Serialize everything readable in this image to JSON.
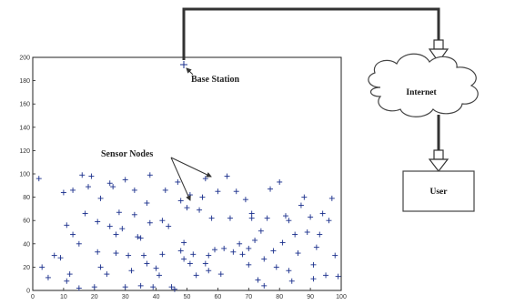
{
  "labels": {
    "base_station": "Base Station",
    "sensor_nodes": "Sensor Nodes",
    "internet": "Internet",
    "user": "User"
  },
  "colors": {
    "marker": "#1a2f8c",
    "line": "#333333",
    "axis": "#222222"
  },
  "icons": {
    "cloud": "cloud-icon",
    "arrow": "arrow-down-icon"
  },
  "chart_data": {
    "type": "scatter",
    "marker": "plus",
    "xlim": [
      0,
      100
    ],
    "ylim": [
      0,
      200
    ],
    "xticks": [
      0,
      10,
      20,
      30,
      40,
      50,
      60,
      70,
      80,
      90,
      100
    ],
    "yticks": [
      0,
      20,
      40,
      60,
      80,
      100,
      120,
      140,
      160,
      180,
      200
    ],
    "title": "",
    "xlabel": "",
    "ylabel": "",
    "base_station": {
      "x": 50,
      "y": 190
    },
    "series": [
      {
        "points": [
          [
            2,
            96
          ],
          [
            3,
            20
          ],
          [
            5,
            11
          ],
          [
            7,
            30
          ],
          [
            9,
            28
          ],
          [
            10,
            84
          ],
          [
            11,
            8
          ],
          [
            11,
            56
          ],
          [
            12,
            14
          ],
          [
            13,
            86
          ],
          [
            13,
            48
          ],
          [
            15,
            2
          ],
          [
            15,
            40
          ],
          [
            16,
            99
          ],
          [
            17,
            66
          ],
          [
            18,
            89
          ],
          [
            19,
            98
          ],
          [
            20,
            3
          ],
          [
            21,
            33
          ],
          [
            21,
            59
          ],
          [
            22,
            79
          ],
          [
            22,
            20
          ],
          [
            24,
            14
          ],
          [
            25,
            55
          ],
          [
            25,
            92
          ],
          [
            26,
            89
          ],
          [
            27,
            48
          ],
          [
            27,
            32
          ],
          [
            28,
            67
          ],
          [
            29,
            53
          ],
          [
            30,
            3
          ],
          [
            30,
            95
          ],
          [
            31,
            30
          ],
          [
            32,
            17
          ],
          [
            33,
            86
          ],
          [
            33,
            65
          ],
          [
            34,
            46
          ],
          [
            35,
            4
          ],
          [
            35,
            45
          ],
          [
            36,
            30
          ],
          [
            37,
            23
          ],
          [
            37,
            75
          ],
          [
            38,
            58
          ],
          [
            38,
            99
          ],
          [
            39,
            3
          ],
          [
            40,
            19
          ],
          [
            41,
            13
          ],
          [
            42,
            31
          ],
          [
            42,
            60
          ],
          [
            43,
            86
          ],
          [
            44,
            55
          ],
          [
            45,
            3
          ],
          [
            46,
            1
          ],
          [
            47,
            93
          ],
          [
            48,
            77
          ],
          [
            48,
            34
          ],
          [
            49,
            41
          ],
          [
            49,
            27
          ],
          [
            50,
            71
          ],
          [
            51,
            82
          ],
          [
            51,
            23
          ],
          [
            52,
            31
          ],
          [
            53,
            13
          ],
          [
            54,
            69
          ],
          [
            55,
            80
          ],
          [
            56,
            96
          ],
          [
            56,
            23
          ],
          [
            57,
            17
          ],
          [
            57,
            30
          ],
          [
            58,
            62
          ],
          [
            59,
            35
          ],
          [
            60,
            85
          ],
          [
            61,
            14
          ],
          [
            62,
            36
          ],
          [
            63,
            98
          ],
          [
            64,
            62
          ],
          [
            65,
            33
          ],
          [
            66,
            85
          ],
          [
            67,
            40
          ],
          [
            68,
            31
          ],
          [
            69,
            78
          ],
          [
            70,
            36
          ],
          [
            70,
            22
          ],
          [
            71,
            62
          ],
          [
            71,
            66
          ],
          [
            72,
            43
          ],
          [
            73,
            9
          ],
          [
            74,
            51
          ],
          [
            75,
            27
          ],
          [
            75,
            4
          ],
          [
            76,
            62
          ],
          [
            77,
            87
          ],
          [
            78,
            34
          ],
          [
            79,
            20
          ],
          [
            80,
            93
          ],
          [
            81,
            41
          ],
          [
            82,
            64
          ],
          [
            83,
            17
          ],
          [
            83,
            60
          ],
          [
            84,
            8
          ],
          [
            85,
            48
          ],
          [
            86,
            32
          ],
          [
            87,
            73
          ],
          [
            88,
            80
          ],
          [
            89,
            50
          ],
          [
            90,
            63
          ],
          [
            91,
            22
          ],
          [
            91,
            10
          ],
          [
            92,
            37
          ],
          [
            93,
            48
          ],
          [
            94,
            66
          ],
          [
            95,
            13
          ],
          [
            96,
            60
          ],
          [
            97,
            79
          ],
          [
            98,
            30
          ],
          [
            99,
            12
          ]
        ]
      }
    ]
  }
}
